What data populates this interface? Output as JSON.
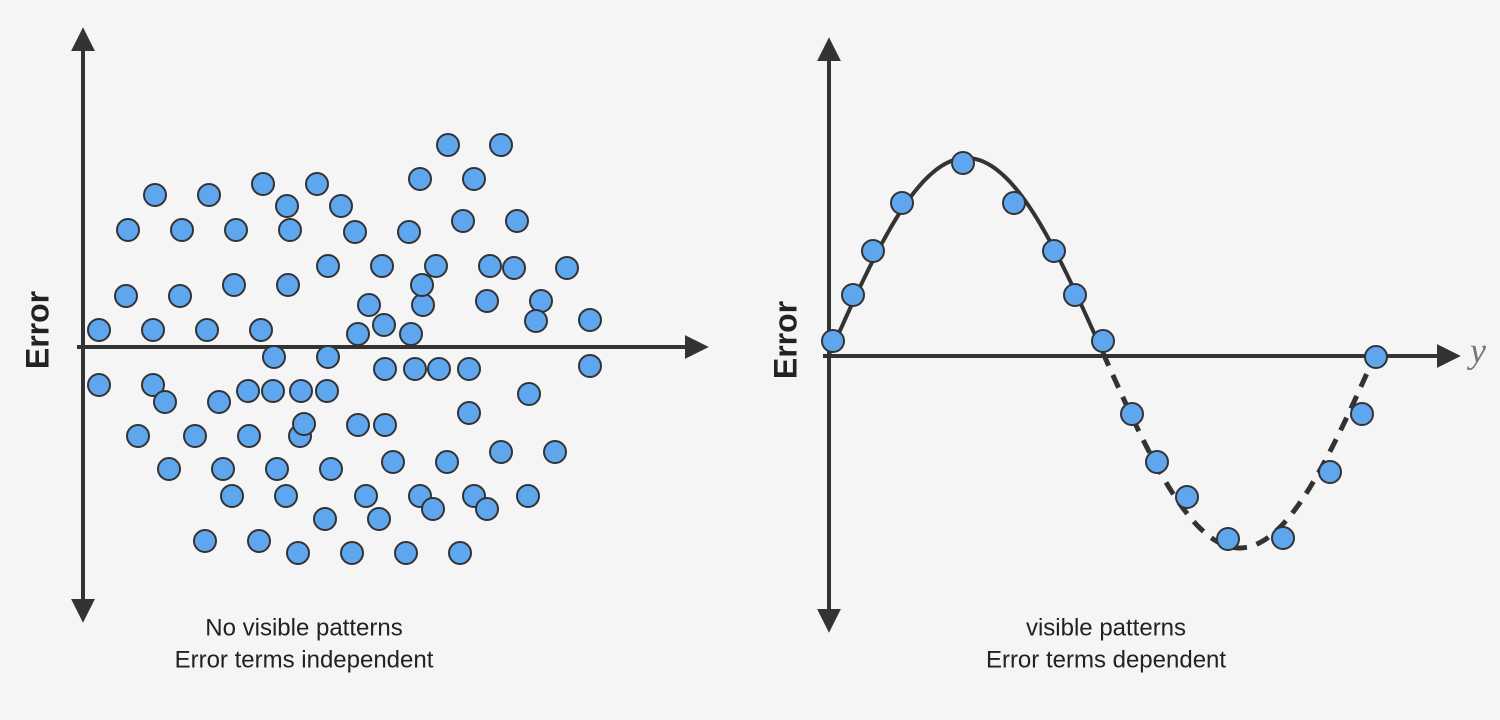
{
  "left_panel": {
    "axis_label": "Error",
    "caption": [
      "No visible patterns",
      "Error terms independent"
    ]
  },
  "right_panel": {
    "axis_label": "Error",
    "x_axis_label": "y",
    "caption": [
      "visible patterns",
      "Error terms dependent"
    ]
  }
}
